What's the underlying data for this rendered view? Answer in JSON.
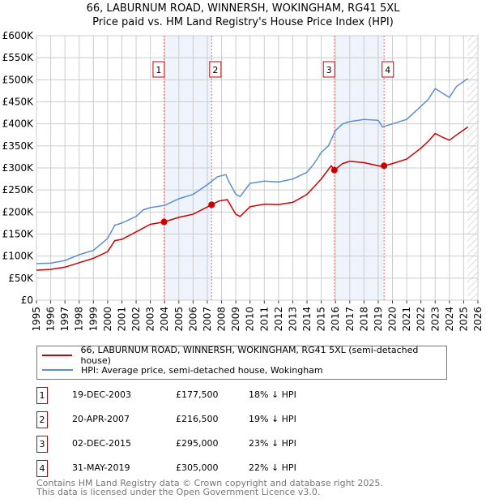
{
  "chart_data": {
    "type": "line",
    "title": "66, LABURNUM ROAD, WINNERSH, WOKINGHAM, RG41 5XL",
    "subtitle": "Price paid vs. HM Land Registry's House Price Index (HPI)",
    "xlim": [
      1995,
      2026
    ],
    "ylim": [
      0,
      600000
    ],
    "x_ticks": [
      "1995",
      "1996",
      "1997",
      "1998",
      "1999",
      "2000",
      "2001",
      "2002",
      "2003",
      "2004",
      "2005",
      "2006",
      "2007",
      "2008",
      "2009",
      "2010",
      "2011",
      "2012",
      "2013",
      "2014",
      "2015",
      "2016",
      "2017",
      "2018",
      "2019",
      "2020",
      "2021",
      "2022",
      "2023",
      "2024",
      "2025",
      "2026"
    ],
    "y_ticks": [
      {
        "v": 0,
        "label": "£0"
      },
      {
        "v": 50000,
        "label": "£50K"
      },
      {
        "v": 100000,
        "label": "£100K"
      },
      {
        "v": 150000,
        "label": "£150K"
      },
      {
        "v": 200000,
        "label": "£200K"
      },
      {
        "v": 250000,
        "label": "£250K"
      },
      {
        "v": 300000,
        "label": "£300K"
      },
      {
        "v": 350000,
        "label": "£350K"
      },
      {
        "v": 400000,
        "label": "£400K"
      },
      {
        "v": 450000,
        "label": "£450K"
      },
      {
        "v": 500000,
        "label": "£500K"
      },
      {
        "v": 550000,
        "label": "£550K"
      },
      {
        "v": 600000,
        "label": "£600K"
      }
    ],
    "grid": true,
    "shaded_ranges": [
      [
        2003.96,
        2007.3
      ],
      [
        2015.92,
        2019.41
      ]
    ],
    "forecast_hatch_from": 2025.25,
    "series": [
      {
        "name": "66, LABURNUM ROAD, WINNERSH, WOKINGHAM, RG41 5XL (semi-detached house)",
        "color": "#cc0000",
        "x": [
          1995,
          1996,
          1997,
          1998,
          1999,
          2000,
          2000.5,
          2001,
          2002,
          2003,
          2003.96,
          2005,
          2006,
          2007.3,
          2007.8,
          2008.4,
          2009.0,
          2009.3,
          2010,
          2011,
          2012,
          2013,
          2014,
          2015,
          2015.7,
          2015.92,
          2016.5,
          2017,
          2018,
          2019.3,
          2019.41,
          2020,
          2021,
          2022,
          2022.5,
          2023,
          2023.5,
          2024,
          2024.5,
          2025.3
        ],
        "y": [
          68000,
          70000,
          75000,
          85000,
          95000,
          110000,
          135000,
          138000,
          155000,
          172000,
          177500,
          188000,
          195000,
          216500,
          225000,
          228000,
          195000,
          190000,
          212000,
          218000,
          217000,
          222000,
          240000,
          275000,
          305000,
          295000,
          310000,
          315000,
          312000,
          303000,
          305000,
          310000,
          320000,
          345000,
          360000,
          378000,
          370000,
          363000,
          375000,
          393000
        ]
      },
      {
        "name": "HPI: Average price, semi-detached house, Wokingham",
        "color": "#5b8fd0",
        "x": [
          1995,
          1996,
          1997,
          1998,
          1999,
          2000,
          2000.5,
          2001,
          2002,
          2002.5,
          2003,
          2004,
          2005,
          2006,
          2007,
          2007.7,
          2008.3,
          2008.5,
          2009.0,
          2009.3,
          2010,
          2011,
          2012,
          2013,
          2014,
          2014.5,
          2015,
          2015.5,
          2016,
          2016.5,
          2017,
          2018,
          2019,
          2019.3,
          2020,
          2021,
          2022,
          2022.5,
          2023,
          2023.5,
          2024,
          2024.5,
          2025.3
        ],
        "y": [
          83000,
          84000,
          90000,
          103000,
          113000,
          140000,
          170000,
          175000,
          190000,
          205000,
          210000,
          215000,
          230000,
          240000,
          262000,
          280000,
          285000,
          270000,
          240000,
          235000,
          265000,
          270000,
          268000,
          275000,
          290000,
          310000,
          335000,
          350000,
          385000,
          400000,
          405000,
          410000,
          408000,
          393000,
          400000,
          410000,
          440000,
          455000,
          480000,
          470000,
          460000,
          485000,
          503000
        ]
      }
    ],
    "sales": [
      {
        "num": "1",
        "x": 2003.96,
        "price": 177500,
        "date": "19-DEC-2003",
        "price_label": "£177,500",
        "hpi": "18% ↓ HPI"
      },
      {
        "num": "2",
        "x": 2007.3,
        "price": 216500,
        "date": "20-APR-2007",
        "price_label": "£216,500",
        "hpi": "19% ↓ HPI"
      },
      {
        "num": "3",
        "x": 2015.92,
        "price": 295000,
        "date": "02-DEC-2015",
        "price_label": "£295,000",
        "hpi": "23% ↓ HPI"
      },
      {
        "num": "4",
        "x": 2019.41,
        "price": 305000,
        "date": "31-MAY-2019",
        "price_label": "£305,000",
        "hpi": "22% ↓ HPI"
      }
    ]
  },
  "footer": {
    "line1": "Contains HM Land Registry data © Crown copyright and database right 2025.",
    "line2": "This data is licensed under the Open Government Licence v3.0."
  }
}
